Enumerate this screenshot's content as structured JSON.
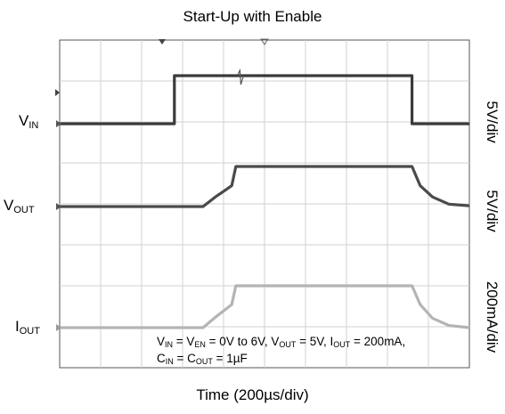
{
  "chart_data": {
    "type": "line",
    "title": "Start-Up with Enable",
    "xlabel": "Time (200µs/div)",
    "grid": true,
    "x_divisions": 10,
    "y_divisions": 8,
    "x_unit": "µs",
    "x_range": [
      0,
      2000
    ],
    "series": [
      {
        "name": "VIN",
        "label_main": "V",
        "label_sub": "IN",
        "scale": "5V/div",
        "color": "#3a3a3a",
        "unit": "V",
        "points": [
          [
            0,
            0
          ],
          [
            560,
            0
          ],
          [
            560,
            6
          ],
          [
            1720,
            6
          ],
          [
            1720,
            0
          ],
          [
            2000,
            0
          ]
        ]
      },
      {
        "name": "VOUT",
        "label_main": "V",
        "label_sub": "OUT",
        "scale": "5V/div",
        "color": "#4a4a4a",
        "unit": "V",
        "points": [
          [
            0,
            0
          ],
          [
            700,
            0
          ],
          [
            760,
            1.2
          ],
          [
            840,
            2.6
          ],
          [
            860,
            5
          ],
          [
            1720,
            5
          ],
          [
            1760,
            2.6
          ],
          [
            1820,
            1.2
          ],
          [
            1900,
            0.3
          ],
          [
            2000,
            0.1
          ]
        ]
      },
      {
        "name": "IOUT",
        "label_main": "I",
        "label_sub": "OUT",
        "scale": "200mA/div",
        "color": "#b4b4b4",
        "unit": "mA",
        "points": [
          [
            0,
            0
          ],
          [
            700,
            0
          ],
          [
            760,
            50
          ],
          [
            840,
            110
          ],
          [
            860,
            200
          ],
          [
            1720,
            200
          ],
          [
            1760,
            110
          ],
          [
            1820,
            45
          ],
          [
            1900,
            10
          ],
          [
            2000,
            0
          ]
        ]
      }
    ],
    "annotation": {
      "line1": [
        {
          "t": "V"
        },
        {
          "s": "IN"
        },
        {
          "t": " = V"
        },
        {
          "s": "EN"
        },
        {
          "t": " = 0V to 6V, V"
        },
        {
          "s": "OUT"
        },
        {
          "t": " = 5V, I"
        },
        {
          "s": "OUT"
        },
        {
          "t": " = 200mA,"
        }
      ],
      "line2": [
        {
          "t": "C"
        },
        {
          "s": "IN"
        },
        {
          "t": " = C"
        },
        {
          "s": "OUT"
        },
        {
          "t": " = 1µF"
        }
      ]
    }
  }
}
